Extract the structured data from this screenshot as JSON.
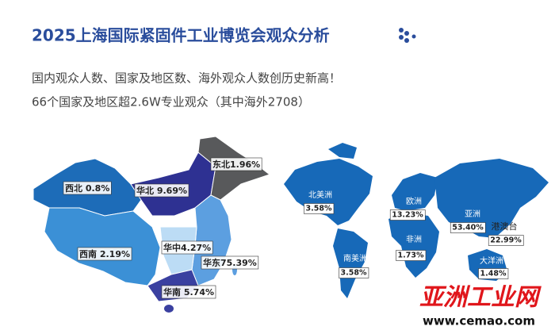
{
  "title": "2025上海国际紧固件工业博览会观众分析",
  "subtitle": [
    "国内观众人数、国家及地区数、海外观众人数创历史新高！",
    "66个国家及地区超2.6W专业观众（其中海外2708）"
  ],
  "china_regions": [
    {
      "label": "东北1.96%"
    },
    {
      "label": "西北 0.8%"
    },
    {
      "label": "华北 9.69%"
    },
    {
      "label": "华中4.27%"
    },
    {
      "label": "西南 2.19%"
    },
    {
      "label": "华东75.39%"
    },
    {
      "label": "华南 5.74%"
    }
  ],
  "world_regions": [
    {
      "name": "北美洲",
      "percent": "3.58%"
    },
    {
      "name": "欧洲",
      "percent": "13.23%"
    },
    {
      "name": "亚洲",
      "percent": "53.40%"
    },
    {
      "name": "港澳台",
      "percent": "22.99%"
    },
    {
      "name": "非洲",
      "percent": "1.73%"
    },
    {
      "name": "南美洲",
      "percent": "3.58%"
    },
    {
      "name": "大洋洲",
      "percent": "1.48%"
    }
  ],
  "watermark": {
    "brand": "亚洲工业网",
    "url": "www.cemao.com"
  }
}
